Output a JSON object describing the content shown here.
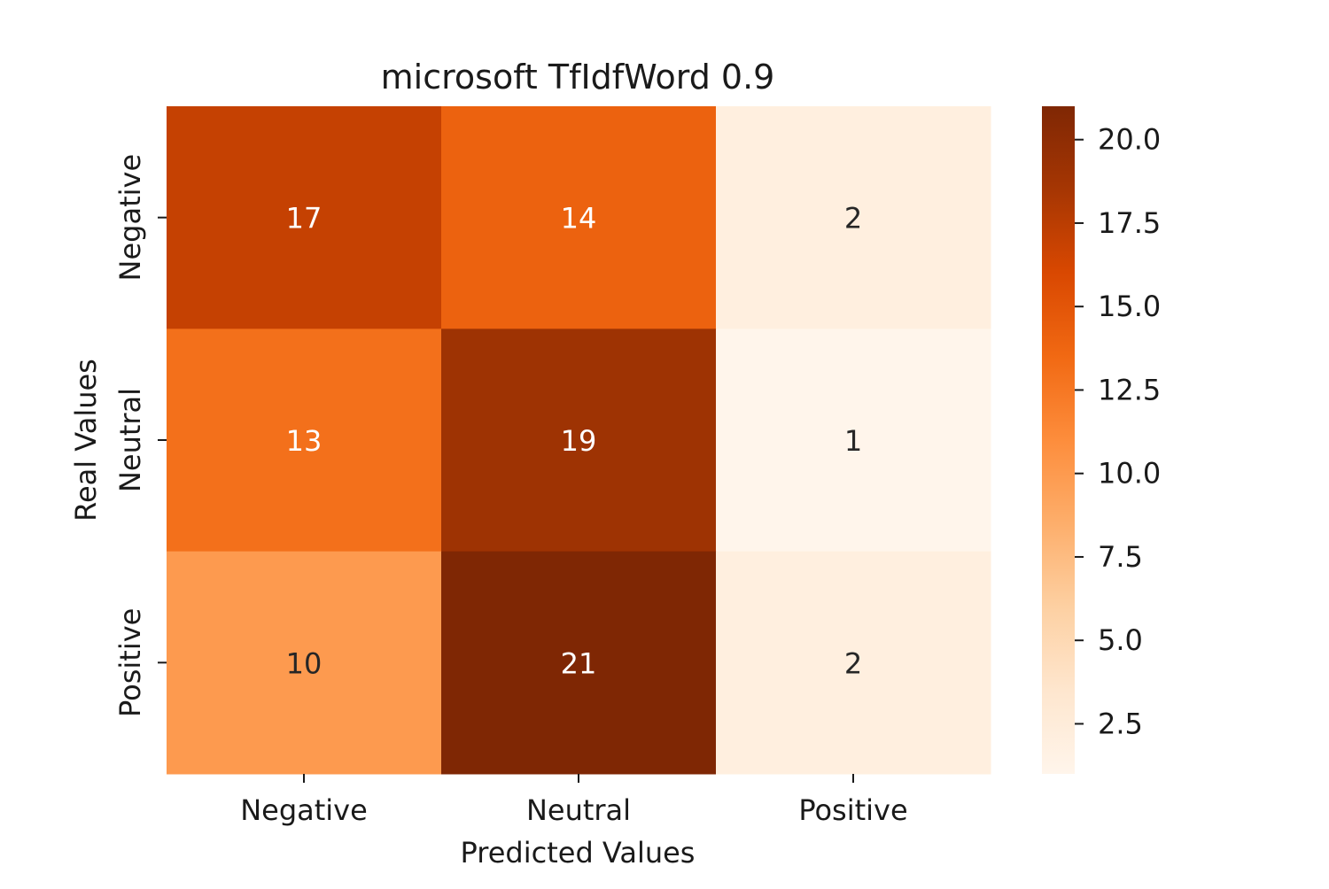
{
  "chart_data": {
    "type": "heatmap",
    "title": "microsoft TfIdfWord 0.9",
    "xlabel": "Predicted Values",
    "ylabel": "Real Values",
    "x_categories": [
      "Negative",
      "Neutral",
      "Positive"
    ],
    "y_categories": [
      "Negative",
      "Neutral",
      "Positive"
    ],
    "values": [
      [
        17,
        14,
        2
      ],
      [
        13,
        19,
        1
      ],
      [
        10,
        21,
        2
      ]
    ],
    "colormap": "Oranges",
    "value_range": [
      1,
      21
    ],
    "colorbar": {
      "ticks": [
        2.5,
        5.0,
        7.5,
        10.0,
        12.5,
        15.0,
        17.5,
        20.0
      ],
      "tick_labels": [
        "2.5",
        "5.0",
        "7.5",
        "10.0",
        "12.5",
        "15.0",
        "17.5",
        "20.0"
      ]
    },
    "annotations": true,
    "grid": false
  }
}
